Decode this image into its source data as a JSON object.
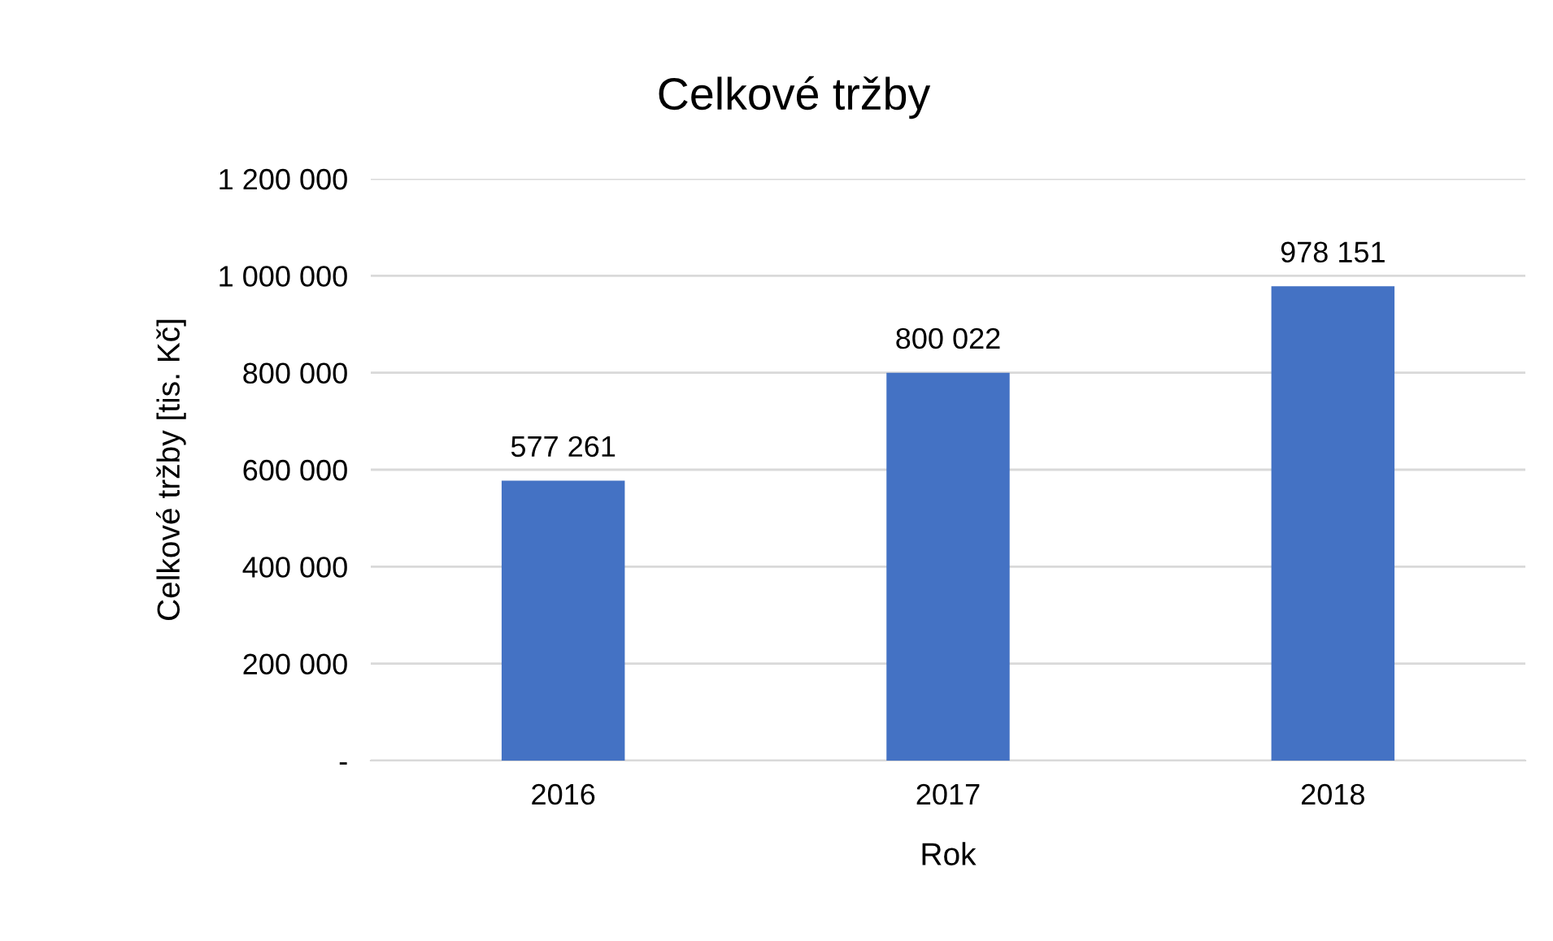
{
  "chart_data": {
    "type": "bar",
    "title": "Celkové tržby",
    "xlabel": "Rok",
    "ylabel": "Celkové tržby [tis. Kč]",
    "categories": [
      "2016",
      "2017",
      "2018"
    ],
    "values": [
      577261,
      800022,
      978151
    ],
    "value_labels": [
      "577 261",
      "800 022",
      "978 151"
    ],
    "color": "#4472c4",
    "ylim": [
      0,
      1200000
    ],
    "yticks": [
      {
        "value": 0,
        "label": "-"
      },
      {
        "value": 200000,
        "label": "200 000"
      },
      {
        "value": 400000,
        "label": "400 000"
      },
      {
        "value": 600000,
        "label": "600 000"
      },
      {
        "value": 800000,
        "label": "800 000"
      },
      {
        "value": 1000000,
        "label": "1 000 000"
      },
      {
        "value": 1200000,
        "label": "1 200 000"
      }
    ],
    "grid": "y",
    "legend": false
  }
}
